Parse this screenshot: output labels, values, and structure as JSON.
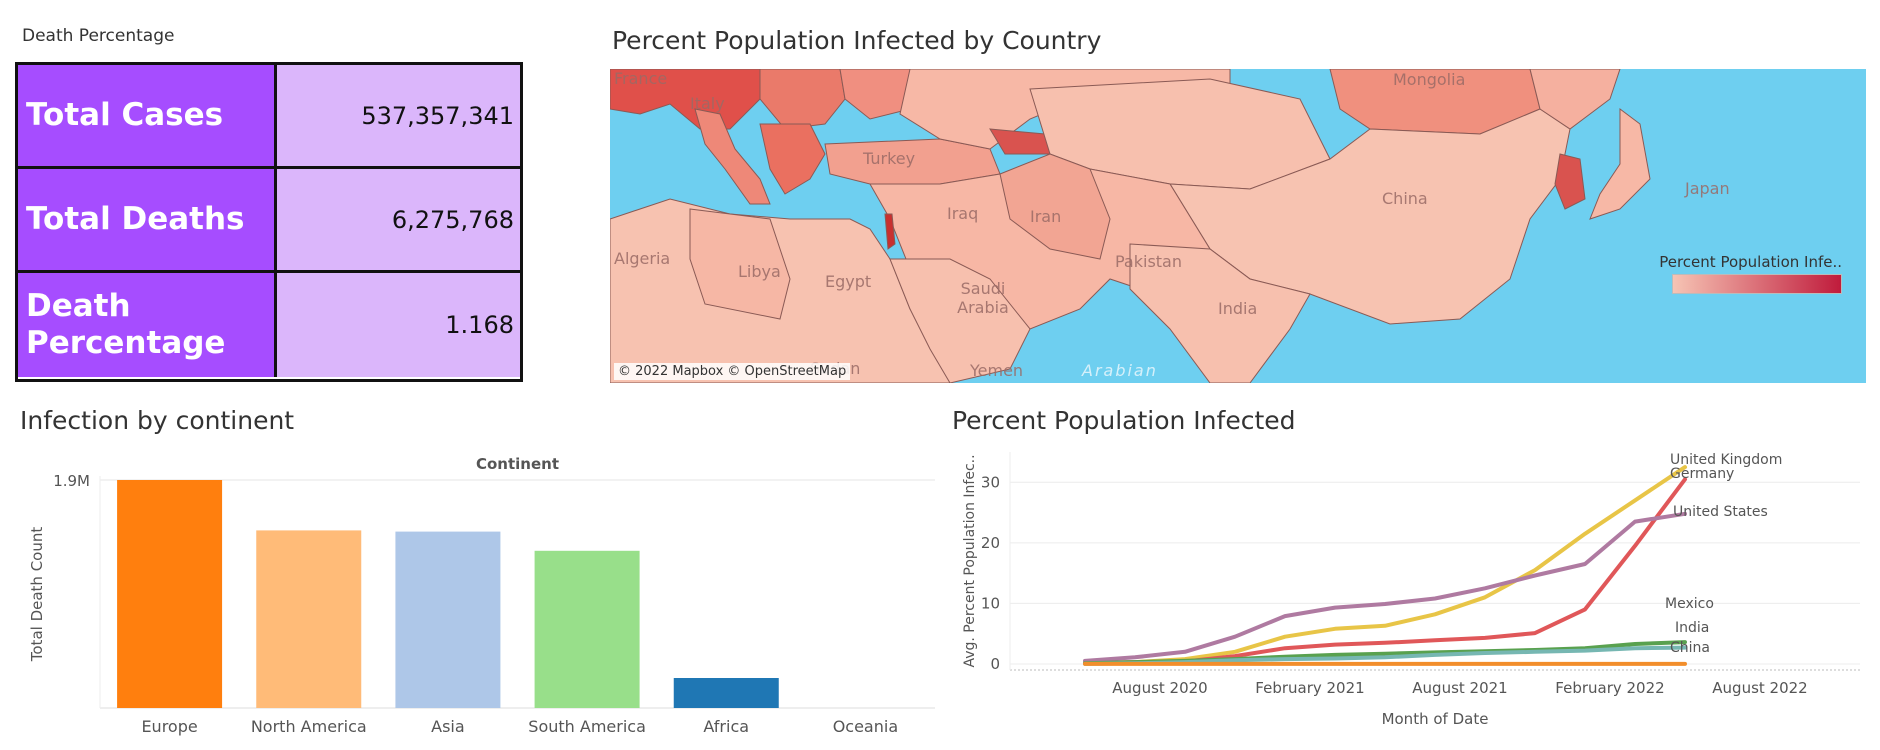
{
  "kpi": {
    "title": "Death Percentage",
    "rows": [
      {
        "label": "Total Cases",
        "value": "537,357,341"
      },
      {
        "label": "Total Deaths",
        "value": "6,275,768"
      },
      {
        "label": "Death Percentage",
        "value": "1.168"
      }
    ],
    "colors": {
      "label_bg": "#a64dff",
      "value_bg": "#dbb6fb"
    }
  },
  "map": {
    "title": "Percent Population Infected by Country",
    "attribution": "© 2022 Mapbox © OpenStreetMap",
    "legend_title": "Percent Population Infe..",
    "legend_colors": [
      "#f6c4b4",
      "#c01b3c"
    ],
    "labels": [
      "France",
      "Italy",
      "Mongolia",
      "Turkey",
      "China",
      "Iraq",
      "Iran",
      "Japan",
      "Algeria",
      "Libya",
      "Egypt",
      "Saudi Arabia",
      "Pakistan",
      "India",
      "Sudan",
      "Yemen",
      "Arabian"
    ]
  },
  "chart_data": [
    {
      "type": "bar",
      "title": "Infection by continent",
      "legend_title": "Continent",
      "ylabel": "Total Death Count",
      "y_tick_label": "1.9M",
      "categories": [
        "Europe",
        "North America",
        "Asia",
        "South America",
        "Africa",
        "Oceania"
      ],
      "values": [
        1900000,
        1480000,
        1470000,
        1310000,
        250000,
        0
      ],
      "colors": [
        "#ff7f0e",
        "#ffbb78",
        "#aec7e8",
        "#98df8a",
        "#1f77b4",
        "#ff9896"
      ]
    },
    {
      "type": "line",
      "title": "Percent Population Infected",
      "xlabel": "Month of Date",
      "ylabel": "Avg. Percent Population Infec..",
      "x_ticks": [
        "August 2020",
        "February 2021",
        "August 2021",
        "February 2022",
        "August 2022"
      ],
      "y_ticks": [
        0,
        10,
        20,
        30
      ],
      "x": [
        "2020-05",
        "2020-07",
        "2020-09",
        "2020-11",
        "2021-01",
        "2021-03",
        "2021-05",
        "2021-07",
        "2021-09",
        "2021-11",
        "2022-01",
        "2022-03",
        "2022-05"
      ],
      "series": [
        {
          "name": "United Kingdom",
          "color": "#e8c547",
          "values": [
            0.1,
            0.3,
            0.8,
            2.0,
            4.5,
            5.8,
            6.3,
            8.2,
            11.0,
            15.5,
            21.5,
            27.0,
            32.5
          ]
        },
        {
          "name": "Germany",
          "color": "#e05759",
          "values": [
            0.2,
            0.3,
            0.4,
            1.3,
            2.6,
            3.2,
            3.5,
            3.9,
            4.3,
            5.1,
            9.0,
            19.5,
            30.5
          ]
        },
        {
          "name": "United States",
          "color": "#af7aa1",
          "values": [
            0.5,
            1.1,
            2.0,
            4.5,
            7.9,
            9.3,
            9.9,
            10.8,
            12.5,
            14.6,
            16.5,
            23.5,
            24.8
          ]
        },
        {
          "name": "Mexico",
          "color": "#59a14f",
          "values": [
            0.1,
            0.3,
            0.5,
            0.8,
            1.2,
            1.5,
            1.7,
            1.9,
            2.1,
            2.3,
            2.6,
            3.3,
            3.6
          ]
        },
        {
          "name": "India",
          "color": "#76b7b2",
          "values": [
            0.0,
            0.1,
            0.3,
            0.6,
            0.8,
            0.9,
            1.1,
            1.5,
            1.8,
            2.0,
            2.2,
            2.6,
            2.7
          ]
        },
        {
          "name": "China",
          "color": "#f28e2b",
          "values": [
            0.0,
            0.0,
            0.0,
            0.0,
            0.0,
            0.0,
            0.0,
            0.0,
            0.0,
            0.0,
            0.0,
            0.0,
            0.0
          ]
        }
      ]
    }
  ]
}
